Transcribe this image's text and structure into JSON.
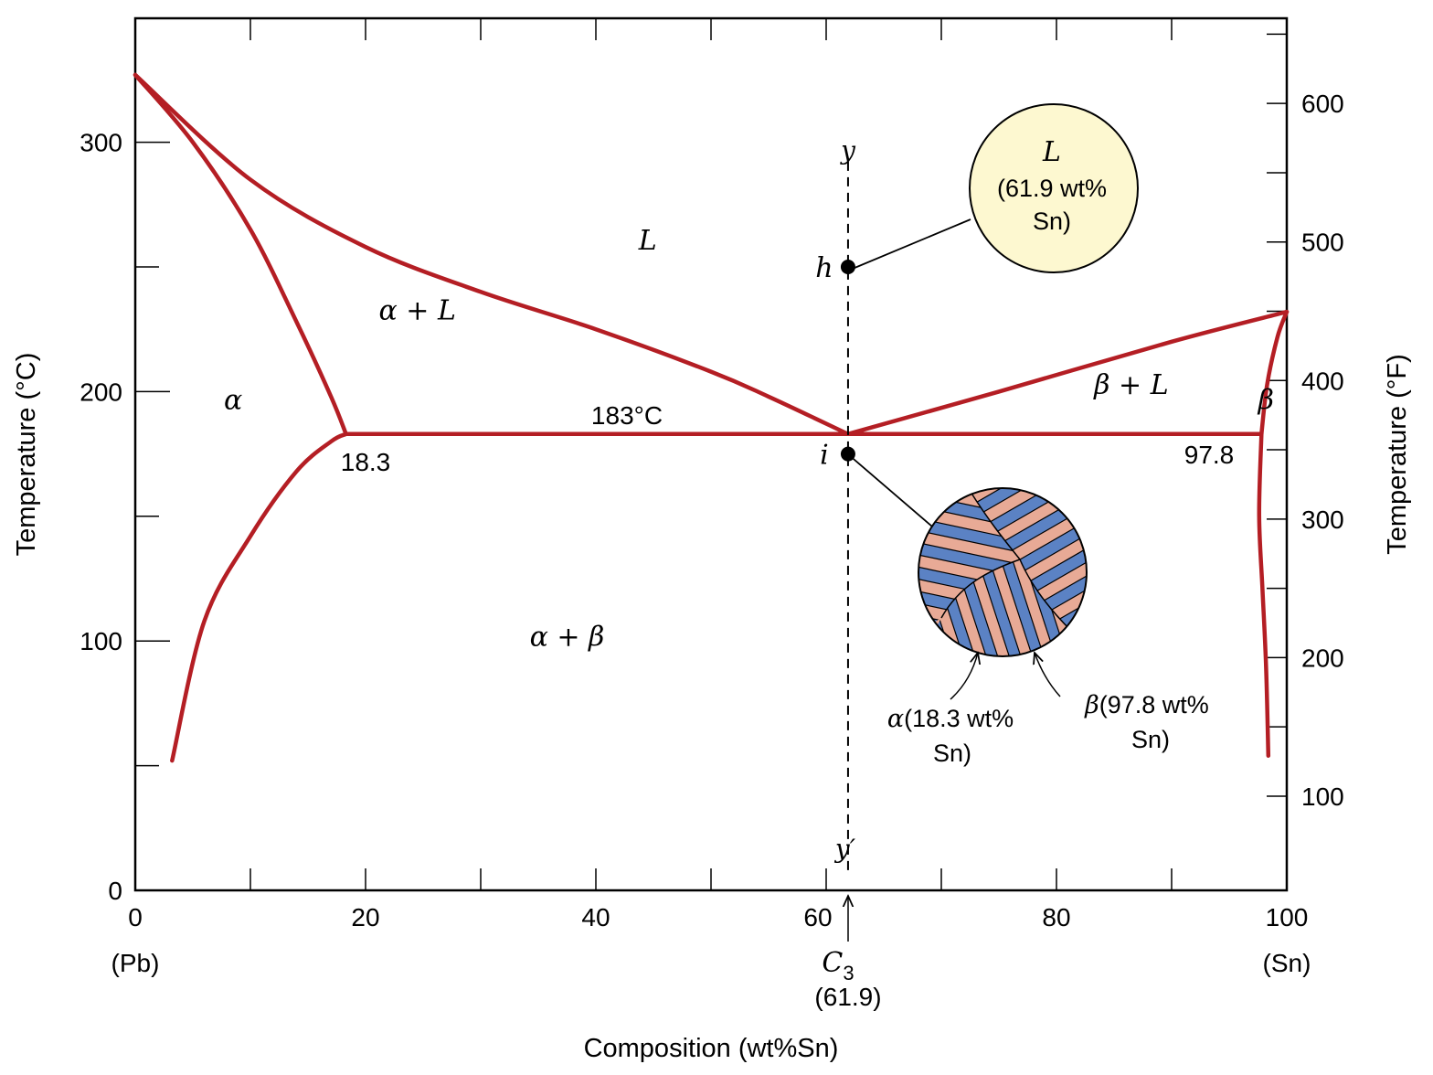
{
  "chart_data": {
    "type": "line",
    "title": "",
    "xlabel": "Composition (wt%Sn)",
    "ylabel_left": "Temperature (°C)",
    "ylabel_right": "Temperature (°F)",
    "xlim": [
      0,
      100
    ],
    "ylim_c": [
      0,
      350
    ],
    "x_ticks": [
      "0",
      "20",
      "40",
      "60",
      "80",
      "100"
    ],
    "x_end_labels": {
      "left": "(Pb)",
      "right": "(Sn)"
    },
    "y_ticks_c": [
      "0",
      "100",
      "200",
      "300"
    ],
    "y_ticks_f": [
      "100",
      "200",
      "300",
      "400",
      "500",
      "600"
    ],
    "grid": false,
    "series": [
      {
        "curve": "alpha-solvus",
        "x": [
          3.2,
          6,
          10,
          14,
          17,
          18.3
        ],
        "y": [
          52,
          108,
          142,
          168,
          180,
          183
        ]
      },
      {
        "curve": "alpha-solidus",
        "x": [
          0,
          5,
          10,
          14,
          17,
          18.3
        ],
        "y": [
          327,
          300,
          265,
          228,
          198,
          183
        ]
      },
      {
        "curve": "liquidus-left",
        "x": [
          0,
          10,
          20,
          30,
          40,
          50,
          55,
          61.9
        ],
        "y": [
          327,
          285,
          258,
          240,
          225,
          208,
          198,
          183
        ]
      },
      {
        "curve": "liquidus-right",
        "x": [
          61.9,
          75,
          90,
          100
        ],
        "y": [
          183,
          200,
          220,
          232
        ]
      },
      {
        "curve": "eutectic-isotherm",
        "x": [
          18.3,
          97.8
        ],
        "y": [
          183,
          183
        ]
      },
      {
        "curve": "beta-solidus",
        "x": [
          97.8,
          98.3,
          99.2,
          100
        ],
        "y": [
          183,
          203,
          222,
          232
        ]
      },
      {
        "curve": "beta-solvus",
        "x": [
          97.8,
          97.6,
          97.9,
          98.2,
          98.4
        ],
        "y": [
          183,
          150,
          120,
          90,
          54
        ]
      }
    ],
    "composition_line": {
      "x": 61.9,
      "y_range": [
        15,
        290
      ],
      "top_label": "y",
      "bottom_label": "y′"
    },
    "points": [
      {
        "label": "h",
        "x": 61.9,
        "y": 250
      },
      {
        "label": "i",
        "x": 61.9,
        "y": 175
      }
    ],
    "annotations": {
      "eutectic_temp": "183°C",
      "alpha_limit": "18.3",
      "beta_limit": "97.8",
      "c3_symbol": "C",
      "c3_subscript": "3",
      "c3_value": "(61.9)",
      "x60_label": "60"
    },
    "regions": [
      {
        "label": "α",
        "x": 8.5,
        "y": 193
      },
      {
        "label": "α + L",
        "x": 24.5,
        "y": 229
      },
      {
        "label": "L",
        "x": 44.5,
        "y": 257
      },
      {
        "label": "α + β",
        "x": 37.5,
        "y": 98
      },
      {
        "label": "β + L",
        "x": 86.5,
        "y": 199
      },
      {
        "label": "β",
        "x": 98.2,
        "y": 193
      }
    ],
    "liquid_inset": {
      "title": "L",
      "line1": "(61.9 wt%",
      "line2": "Sn)",
      "fill": "#fdf8d0"
    },
    "eutectic_inset": {
      "alpha_symbol": "α",
      "alpha_line1": "(18.3 wt%",
      "alpha_line2": "Sn)",
      "beta_symbol": "β",
      "beta_line1": "(97.8 wt%",
      "beta_line2": "Sn)",
      "alpha_color": "#e8aa96",
      "beta_color": "#5b82c4"
    },
    "colors": {
      "phase_boundary": "#b41e24",
      "axis": "#000000"
    }
  }
}
